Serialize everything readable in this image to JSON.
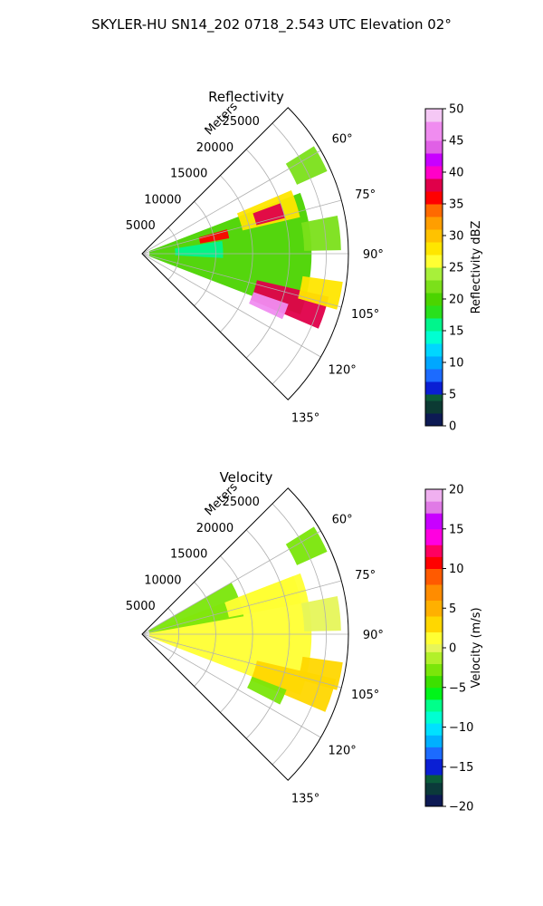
{
  "figure": {
    "suptitle": "SKYLER-HU  SN14_202  0718_2.543 UTC Elevation 02°"
  },
  "chart_data": [
    {
      "type": "heatmap",
      "projection": "polar-sector",
      "title": "Reflectivity",
      "radial_label": "Meters",
      "radial_ticks": [
        5000,
        10000,
        15000,
        20000,
        25000
      ],
      "radial_tick_labels": [
        "5000",
        "10000",
        "15000",
        "20000",
        "25000"
      ],
      "theta_ticks_deg": [
        60,
        75,
        90,
        105,
        120,
        135
      ],
      "theta_tick_labels": [
        "60°",
        "75°",
        "90°",
        "105°",
        "120°",
        "135°"
      ],
      "theta_range_deg": [
        45,
        135
      ],
      "r_max": 28000,
      "grid": true,
      "colorbar": {
        "label": "Reflectivity dBZ",
        "range": [
          0,
          50
        ],
        "ticks": [
          0,
          5,
          10,
          15,
          20,
          25,
          30,
          35,
          40,
          45,
          50
        ],
        "tick_labels": [
          "0",
          "5",
          "10",
          "15",
          "20",
          "25",
          "30",
          "35",
          "40",
          "45",
          "50"
        ],
        "colormap": "pyart_NWSRef",
        "stops": [
          [
            0,
            "#0d1a54"
          ],
          [
            2,
            "#0c3a33"
          ],
          [
            4,
            "#0b5c3a"
          ],
          [
            5,
            "#0a1fd4"
          ],
          [
            7,
            "#1c6bff"
          ],
          [
            9,
            "#00a7ff"
          ],
          [
            11,
            "#00d6ff"
          ],
          [
            13,
            "#00ffd2"
          ],
          [
            15,
            "#00f58c"
          ],
          [
            17,
            "#29e01c"
          ],
          [
            19,
            "#4bd400"
          ],
          [
            21,
            "#7be01a"
          ],
          [
            23,
            "#a8f03a"
          ],
          [
            25,
            "#ffff33"
          ],
          [
            27,
            "#ffe600"
          ],
          [
            29,
            "#ffc200"
          ],
          [
            31,
            "#ff9e00"
          ],
          [
            33,
            "#ff6a00"
          ],
          [
            35,
            "#ff0000"
          ],
          [
            37,
            "#e0004a"
          ],
          [
            39,
            "#ff00c8"
          ],
          [
            41,
            "#c800ff"
          ],
          [
            43,
            "#e060e6"
          ],
          [
            45,
            "#f08cf0"
          ],
          [
            48,
            "#f5c8f5"
          ],
          [
            50,
            "#fde4fd"
          ]
        ]
      },
      "echo_regions": [
        {
          "az_center": 90,
          "az_width": 42,
          "r_start": 1000,
          "r_end": 23000,
          "value": 19
        },
        {
          "az_center": 87,
          "az_width": 12,
          "r_start": 4500,
          "r_end": 11000,
          "value": 15
        },
        {
          "az_center": 62,
          "az_width": 8,
          "r_start": 23000,
          "r_end": 27500,
          "value": 21
        },
        {
          "az_center": 72,
          "az_width": 10,
          "r_start": 14000,
          "r_end": 22000,
          "value": 27
        },
        {
          "az_center": 73,
          "az_width": 6,
          "r_start": 16000,
          "r_end": 20000,
          "value": 37
        },
        {
          "az_center": 77,
          "az_width": 6,
          "r_start": 8000,
          "r_end": 12000,
          "value": 36
        },
        {
          "az_center": 108,
          "az_width": 10,
          "r_start": 16000,
          "r_end": 26000,
          "value": 38
        },
        {
          "az_center": 112,
          "az_width": 6,
          "r_start": 16000,
          "r_end": 21000,
          "value": 46
        },
        {
          "az_center": 102,
          "az_width": 8,
          "r_start": 22000,
          "r_end": 27500,
          "value": 27
        },
        {
          "az_center": 84,
          "az_width": 10,
          "r_start": 22000,
          "r_end": 27000,
          "value": 21
        }
      ]
    },
    {
      "type": "heatmap",
      "projection": "polar-sector",
      "title": "Velocity",
      "radial_label": "Meters",
      "radial_ticks": [
        5000,
        10000,
        15000,
        20000,
        25000
      ],
      "radial_tick_labels": [
        "5000",
        "10000",
        "15000",
        "20000",
        "25000"
      ],
      "theta_ticks_deg": [
        60,
        75,
        90,
        105,
        120,
        135
      ],
      "theta_tick_labels": [
        "60°",
        "75°",
        "90°",
        "105°",
        "120°",
        "135°"
      ],
      "theta_range_deg": [
        45,
        135
      ],
      "r_max": 28000,
      "grid": true,
      "colorbar": {
        "label": "Velocity (m/s)",
        "range": [
          -20,
          20
        ],
        "ticks": [
          -20,
          -15,
          -10,
          -5,
          0,
          5,
          10,
          15,
          20
        ],
        "tick_labels": [
          "−20",
          "−15",
          "−10",
          "−5",
          "0",
          "5",
          "10",
          "15",
          "20"
        ],
        "colormap": "pyart_BuDRd18",
        "stops": [
          [
            -20,
            "#0d1a54"
          ],
          [
            -18.5,
            "#0b3a3a"
          ],
          [
            -17,
            "#0b5c3a"
          ],
          [
            -16,
            "#0a1fd4"
          ],
          [
            -14,
            "#1c6bff"
          ],
          [
            -12.5,
            "#00b0ff"
          ],
          [
            -11,
            "#00e1ff"
          ],
          [
            -9.5,
            "#00ffd2"
          ],
          [
            -8,
            "#00ff8a"
          ],
          [
            -6.5,
            "#00f51a"
          ],
          [
            -5,
            "#3ce000"
          ],
          [
            -3.5,
            "#7ae60a"
          ],
          [
            -2,
            "#b2f02a"
          ],
          [
            -0.5,
            "#e6f55a"
          ],
          [
            0.5,
            "#ffff33"
          ],
          [
            2,
            "#ffd700"
          ],
          [
            4,
            "#ffb000"
          ],
          [
            6,
            "#ff8c00"
          ],
          [
            8,
            "#ff5a00"
          ],
          [
            10,
            "#ff0000"
          ],
          [
            11.5,
            "#ff0060"
          ],
          [
            13,
            "#ff00e0"
          ],
          [
            15,
            "#c800ff"
          ],
          [
            17,
            "#e07ae6"
          ],
          [
            18.5,
            "#f0b0f0"
          ],
          [
            20,
            "#fde4fd"
          ]
        ]
      },
      "echo_regions": [
        {
          "az_center": 90,
          "az_width": 42,
          "r_start": 1000,
          "r_end": 23000,
          "value": 1
        },
        {
          "az_center": 70,
          "az_width": 20,
          "r_start": 1000,
          "r_end": 14000,
          "value": -3
        },
        {
          "az_center": 62,
          "az_width": 8,
          "r_start": 23000,
          "r_end": 27500,
          "value": -3
        },
        {
          "az_center": 74,
          "az_width": 10,
          "r_start": 12000,
          "r_end": 22000,
          "value": 1
        },
        {
          "az_center": 108,
          "az_width": 10,
          "r_start": 16000,
          "r_end": 27000,
          "value": 2
        },
        {
          "az_center": 114,
          "az_width": 6,
          "r_start": 16000,
          "r_end": 21000,
          "value": -3
        },
        {
          "az_center": 102,
          "az_width": 8,
          "r_start": 22000,
          "r_end": 27500,
          "value": 3
        },
        {
          "az_center": 84,
          "az_width": 10,
          "r_start": 22000,
          "r_end": 27000,
          "value": 0
        }
      ]
    }
  ]
}
